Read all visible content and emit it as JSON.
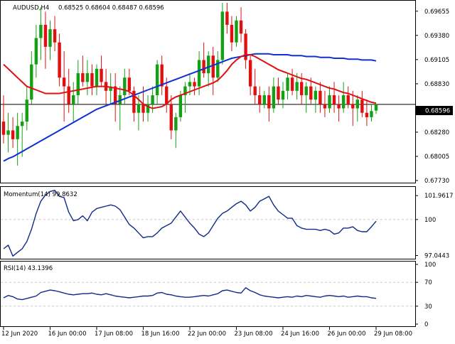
{
  "header": {
    "symbol": "AUDUSD,H4",
    "ohlc": "0.68525 0.68604 0.68487 0.68596"
  },
  "colors": {
    "bull": "#14a014",
    "bear": "#e01010",
    "ma_fast": "#e01010",
    "ma_slow": "#1030d0",
    "indicator": "#102a8a",
    "grid": "#c8c8c8",
    "axis": "#000000"
  },
  "chart_data": [
    {
      "type": "candlestick",
      "title": "AUDUSD,H4",
      "subtitle": "0.68525 0.68604 0.68487 0.68596",
      "y_ticks": [
        "0.69655",
        "0.69380",
        "0.69105",
        "0.68830",
        "0.68280",
        "0.68005",
        "0.67730"
      ],
      "current_price_label": "0.68596",
      "current_price": 0.68596,
      "ylim": [
        0.6773,
        0.6975
      ],
      "x_ticks": [
        {
          "index": 0,
          "label": "12 Jun 2020"
        },
        {
          "index": 10,
          "label": "16 Jun 00:00"
        },
        {
          "index": 20,
          "label": "17 Jun 08:00"
        },
        {
          "index": 30,
          "label": "18 Jun 16:00"
        },
        {
          "index": 40,
          "label": "22 Jun 00:00"
        },
        {
          "index": 50,
          "label": "23 Jun 08:00"
        },
        {
          "index": 60,
          "label": "24 Jun 16:00"
        },
        {
          "index": 70,
          "label": "26 Jun 00:00"
        },
        {
          "index": 80,
          "label": "29 Jun 08:00"
        }
      ],
      "candles": [
        [
          0.684,
          0.687,
          0.6815,
          0.6825
        ],
        [
          0.6825,
          0.685,
          0.6805,
          0.683
        ],
        [
          0.683,
          0.6845,
          0.681,
          0.682
        ],
        [
          0.682,
          0.685,
          0.679,
          0.6835
        ],
        [
          0.6835,
          0.685,
          0.68,
          0.684
        ],
        [
          0.684,
          0.688,
          0.683,
          0.6865
        ],
        [
          0.6865,
          0.692,
          0.686,
          0.6905
        ],
        [
          0.6905,
          0.695,
          0.689,
          0.6935
        ],
        [
          0.6935,
          0.697,
          0.691,
          0.695
        ],
        [
          0.695,
          0.6965,
          0.69,
          0.6925
        ],
        [
          0.6925,
          0.6955,
          0.691,
          0.6945
        ],
        [
          0.6945,
          0.696,
          0.692,
          0.693
        ],
        [
          0.693,
          0.694,
          0.688,
          0.689
        ],
        [
          0.689,
          0.692,
          0.684,
          0.688
        ],
        [
          0.688,
          0.69,
          0.685,
          0.686
        ],
        [
          0.686,
          0.6885,
          0.684,
          0.687
        ],
        [
          0.687,
          0.691,
          0.686,
          0.6895
        ],
        [
          0.6895,
          0.6915,
          0.688,
          0.6885
        ],
        [
          0.6885,
          0.691,
          0.687,
          0.6895
        ],
        [
          0.6895,
          0.6905,
          0.687,
          0.688
        ],
        [
          0.688,
          0.6905,
          0.687,
          0.69
        ],
        [
          0.69,
          0.6915,
          0.688,
          0.6885
        ],
        [
          0.6885,
          0.69,
          0.686,
          0.6875
        ],
        [
          0.6875,
          0.6895,
          0.686,
          0.688
        ],
        [
          0.688,
          0.6895,
          0.684,
          0.686
        ],
        [
          0.686,
          0.688,
          0.683,
          0.687
        ],
        [
          0.687,
          0.69,
          0.686,
          0.689
        ],
        [
          0.689,
          0.69,
          0.687,
          0.6875
        ],
        [
          0.6875,
          0.688,
          0.684,
          0.685
        ],
        [
          0.685,
          0.687,
          0.683,
          0.686
        ],
        [
          0.686,
          0.688,
          0.684,
          0.685
        ],
        [
          0.685,
          0.687,
          0.684,
          0.686
        ],
        [
          0.686,
          0.688,
          0.685,
          0.687
        ],
        [
          0.687,
          0.691,
          0.686,
          0.6905
        ],
        [
          0.6905,
          0.6915,
          0.687,
          0.688
        ],
        [
          0.688,
          0.689,
          0.685,
          0.686
        ],
        [
          0.686,
          0.687,
          0.682,
          0.683
        ],
        [
          0.683,
          0.685,
          0.681,
          0.6845
        ],
        [
          0.6845,
          0.6875,
          0.684,
          0.687
        ],
        [
          0.687,
          0.6885,
          0.685,
          0.688
        ],
        [
          0.688,
          0.6895,
          0.687,
          0.6885
        ],
        [
          0.6885,
          0.689,
          0.687,
          0.688
        ],
        [
          0.688,
          0.692,
          0.687,
          0.691
        ],
        [
          0.691,
          0.693,
          0.689,
          0.6895
        ],
        [
          0.6895,
          0.692,
          0.688,
          0.6915
        ],
        [
          0.6915,
          0.6925,
          0.687,
          0.689
        ],
        [
          0.689,
          0.692,
          0.6885,
          0.691
        ],
        [
          0.691,
          0.6975,
          0.6905,
          0.6965
        ],
        [
          0.6965,
          0.6975,
          0.694,
          0.695
        ],
        [
          0.695,
          0.696,
          0.692,
          0.693
        ],
        [
          0.693,
          0.696,
          0.6925,
          0.6955
        ],
        [
          0.6955,
          0.697,
          0.693,
          0.694
        ],
        [
          0.694,
          0.6945,
          0.69,
          0.691
        ],
        [
          0.691,
          0.6915,
          0.687,
          0.688
        ],
        [
          0.688,
          0.69,
          0.686,
          0.687
        ],
        [
          0.687,
          0.688,
          0.685,
          0.686
        ],
        [
          0.686,
          0.6875,
          0.6855,
          0.687
        ],
        [
          0.687,
          0.688,
          0.684,
          0.6855
        ],
        [
          0.6855,
          0.689,
          0.685,
          0.688
        ],
        [
          0.688,
          0.689,
          0.686,
          0.6865
        ],
        [
          0.6865,
          0.6885,
          0.6855,
          0.6875
        ],
        [
          0.6875,
          0.6895,
          0.6865,
          0.689
        ],
        [
          0.689,
          0.69,
          0.687,
          0.6875
        ],
        [
          0.6875,
          0.6895,
          0.6865,
          0.6885
        ],
        [
          0.6885,
          0.6895,
          0.686,
          0.687
        ],
        [
          0.687,
          0.6885,
          0.685,
          0.688
        ],
        [
          0.688,
          0.689,
          0.686,
          0.6865
        ],
        [
          0.6865,
          0.688,
          0.685,
          0.6875
        ],
        [
          0.6875,
          0.6885,
          0.685,
          0.686
        ],
        [
          0.686,
          0.6875,
          0.6845,
          0.6855
        ],
        [
          0.6855,
          0.688,
          0.685,
          0.687
        ],
        [
          0.687,
          0.6885,
          0.685,
          0.686
        ],
        [
          0.686,
          0.687,
          0.684,
          0.6855
        ],
        [
          0.6855,
          0.6885,
          0.685,
          0.687
        ],
        [
          0.687,
          0.688,
          0.6855,
          0.686
        ],
        [
          0.686,
          0.6875,
          0.6835,
          0.6855
        ],
        [
          0.6855,
          0.687,
          0.684,
          0.6865
        ],
        [
          0.6865,
          0.6875,
          0.6845,
          0.685
        ],
        [
          0.685,
          0.6865,
          0.6835,
          0.6845
        ],
        [
          0.6845,
          0.686,
          0.684,
          0.6852
        ],
        [
          0.68525,
          0.68604,
          0.68487,
          0.68596
        ]
      ],
      "ma_fast": [
        0.6905,
        0.69,
        0.6895,
        0.689,
        0.6885,
        0.688,
        0.6878,
        0.6876,
        0.6874,
        0.6872,
        0.6872,
        0.6872,
        0.6872,
        0.6873,
        0.6874,
        0.6875,
        0.6876,
        0.6877,
        0.6878,
        0.6879,
        0.688,
        0.688,
        0.688,
        0.6879,
        0.6878,
        0.6877,
        0.6876,
        0.6874,
        0.687,
        0.6865,
        0.686,
        0.6857,
        0.6855,
        0.6856,
        0.6857,
        0.686,
        0.6865,
        0.6868,
        0.687,
        0.6872,
        0.6874,
        0.6876,
        0.6878,
        0.688,
        0.6882,
        0.6884,
        0.6887,
        0.6892,
        0.6898,
        0.6905,
        0.691,
        0.6914,
        0.6916,
        0.6916,
        0.6914,
        0.6911,
        0.6908,
        0.6905,
        0.6902,
        0.6899,
        0.6897,
        0.6895,
        0.6893,
        0.6891,
        0.6889,
        0.6888,
        0.6886,
        0.6884,
        0.6882,
        0.688,
        0.6878,
        0.6877,
        0.6875,
        0.6873,
        0.6872,
        0.687,
        0.6868,
        0.6866,
        0.6864,
        0.6862,
        0.6861
      ],
      "ma_slow": [
        0.6795,
        0.6798,
        0.68,
        0.6803,
        0.6806,
        0.6809,
        0.6812,
        0.6815,
        0.6818,
        0.6821,
        0.6824,
        0.6827,
        0.683,
        0.6833,
        0.6836,
        0.6839,
        0.6842,
        0.6845,
        0.6848,
        0.6851,
        0.6854,
        0.6856,
        0.6858,
        0.686,
        0.6862,
        0.6864,
        0.6866,
        0.6868,
        0.687,
        0.6872,
        0.6874,
        0.6876,
        0.6878,
        0.688,
        0.6882,
        0.6884,
        0.6886,
        0.6888,
        0.689,
        0.6892,
        0.6894,
        0.6896,
        0.6898,
        0.69,
        0.6902,
        0.6904,
        0.6906,
        0.6908,
        0.691,
        0.6912,
        0.6913,
        0.6914,
        0.6915,
        0.6916,
        0.6917,
        0.6917,
        0.6917,
        0.6917,
        0.6916,
        0.6916,
        0.6916,
        0.6916,
        0.6915,
        0.6915,
        0.6915,
        0.6914,
        0.6914,
        0.6914,
        0.6913,
        0.6913,
        0.6913,
        0.6912,
        0.6912,
        0.6912,
        0.6911,
        0.6911,
        0.6911,
        0.691,
        0.691,
        0.691,
        0.6909
      ]
    },
    {
      "type": "line",
      "title": "Momentum(14) 99.8632",
      "y_ticks": [
        "101.9617",
        "100",
        "97.0443"
      ],
      "reference_level": 100,
      "ylim": [
        96.9,
        102.5
      ],
      "values": [
        97.6,
        97.9,
        97.0,
        97.3,
        97.6,
        98.2,
        99.2,
        100.5,
        101.5,
        102.0,
        102.3,
        102.4,
        101.9,
        101.8,
        100.6,
        99.9,
        100.0,
        100.3,
        99.9,
        100.6,
        100.9,
        101.0,
        101.1,
        101.2,
        101.1,
        100.8,
        100.2,
        99.6,
        99.3,
        98.9,
        98.5,
        98.6,
        98.6,
        98.9,
        99.3,
        99.5,
        99.7,
        100.2,
        100.7,
        100.2,
        99.7,
        99.3,
        98.8,
        98.6,
        98.9,
        99.5,
        100.1,
        100.5,
        100.7,
        101.0,
        101.3,
        101.5,
        101.2,
        100.7,
        101.0,
        101.5,
        101.7,
        101.9,
        101.2,
        100.7,
        100.4,
        100.1,
        100.1,
        99.5,
        99.3,
        99.2,
        99.2,
        99.2,
        99.1,
        99.2,
        99.1,
        98.8,
        98.9,
        99.3,
        99.3,
        99.4,
        99.1,
        99.0,
        99.0,
        99.4,
        99.8632
      ]
    },
    {
      "type": "line",
      "title": "RSI(14) 43.1396",
      "y_ticks": [
        "100",
        "70",
        "30",
        "0"
      ],
      "reference_levels": [
        70,
        30
      ],
      "ylim": [
        0,
        100
      ],
      "values": [
        44,
        48,
        46,
        42,
        41,
        43,
        45,
        47,
        53,
        55,
        57,
        56,
        54,
        52,
        50,
        49,
        50,
        51,
        51,
        52,
        50,
        49,
        51,
        49,
        47,
        46,
        45,
        44,
        45,
        46,
        47,
        47,
        48,
        52,
        53,
        50,
        49,
        47,
        46,
        45,
        45,
        46,
        47,
        48,
        47,
        49,
        51,
        56,
        57,
        55,
        53,
        52,
        61,
        56,
        53,
        49,
        47,
        46,
        45,
        44,
        45,
        46,
        45,
        47,
        46,
        48,
        47,
        46,
        45,
        47,
        48,
        47,
        46,
        47,
        45,
        46,
        47,
        46,
        46,
        44,
        43.1396
      ]
    }
  ]
}
